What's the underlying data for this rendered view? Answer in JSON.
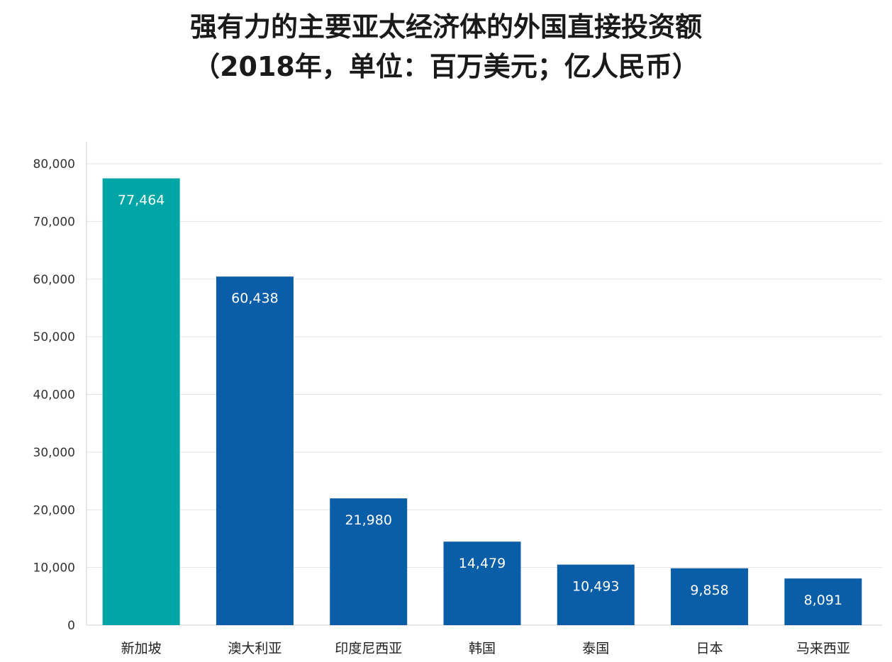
{
  "chart_data": {
    "type": "bar",
    "title": "强有力的主要亚太经济体的外国直接投资额",
    "subtitle": "（2018年，单位：百万美元；亿人民币）",
    "xlabel": "",
    "ylabel": "",
    "categories": [
      "新加坡",
      "澳大利亚",
      "印度尼西亚",
      "韩国",
      "泰国",
      "日本",
      "马来西亚"
    ],
    "values": [
      77464,
      60438,
      21980,
      14479,
      10493,
      9858,
      8091
    ],
    "value_labels": [
      "77,464",
      "60,438",
      "21,980",
      "14,479",
      "10,493",
      "9,858",
      "8,091"
    ],
    "ylim": [
      0,
      80000
    ],
    "yticks": [
      0,
      10000,
      20000,
      30000,
      40000,
      50000,
      60000,
      70000,
      80000
    ],
    "ytick_labels": [
      "0",
      "10,000",
      "20,000",
      "30,000",
      "40,000",
      "50,000",
      "60,000",
      "70,000",
      "80,000"
    ],
    "grid": true,
    "legend": "none",
    "colors": {
      "highlight": "#00a6a6",
      "bar": "#0a5ea8",
      "grid": "#e3e3e3",
      "axis": "#cfcfcf"
    },
    "highlight_index": 0
  }
}
